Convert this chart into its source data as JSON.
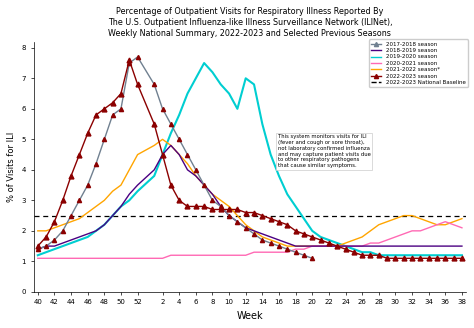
{
  "title": "Percentage of Outpatient Visits for Respiratory Illness Reported By\nThe U.S. Outpatient Influenza-like Illness Surveillance Network (ILINet),\nWeekly National Summary, 2022-2023 and Selected Previous Seasons",
  "xlabel": "Week",
  "ylabel": "% of Visits for ILI",
  "ylim": [
    0,
    8.2
  ],
  "baseline": 2.5,
  "seasons": {
    "2017-2018 season": {
      "color": "#708090",
      "style": "-",
      "marker": "^",
      "markersize": 3,
      "linewidth": 1.0,
      "weeks": [
        40,
        41,
        42,
        43,
        44,
        45,
        46,
        47,
        48,
        49,
        50,
        51,
        52,
        1,
        2,
        3,
        4,
        5,
        6,
        7,
        8,
        9,
        10,
        11,
        12,
        13,
        14,
        15,
        16,
        17,
        18,
        19,
        20
      ],
      "values": [
        1.4,
        1.5,
        1.7,
        2.0,
        2.5,
        3.0,
        3.5,
        4.2,
        5.0,
        5.8,
        6.0,
        7.5,
        7.7,
        6.8,
        6.0,
        5.5,
        5.0,
        4.5,
        4.0,
        3.5,
        3.0,
        2.8,
        2.5,
        2.3,
        2.1,
        1.9,
        1.7,
        1.6,
        1.5,
        1.4,
        1.3,
        1.2,
        1.1
      ]
    },
    "2018-2019 season": {
      "color": "#4B0082",
      "style": "-",
      "marker": null,
      "linewidth": 1.0,
      "weeks": [
        40,
        41,
        42,
        43,
        44,
        45,
        46,
        47,
        48,
        49,
        50,
        51,
        52,
        1,
        2,
        3,
        4,
        5,
        6,
        7,
        8,
        9,
        10,
        11,
        12,
        13,
        14,
        15,
        16,
        17,
        18,
        19,
        20,
        21,
        22,
        23,
        24,
        25,
        26,
        27,
        28,
        29,
        30,
        31,
        32,
        33,
        34,
        35,
        36,
        37,
        38
      ],
      "values": [
        1.4,
        1.5,
        1.5,
        1.6,
        1.7,
        1.8,
        1.9,
        2.0,
        2.2,
        2.5,
        2.8,
        3.2,
        3.5,
        4.0,
        4.5,
        4.8,
        4.5,
        4.0,
        3.8,
        3.5,
        3.2,
        2.8,
        2.5,
        2.3,
        2.1,
        2.0,
        1.9,
        1.8,
        1.7,
        1.6,
        1.5,
        1.5,
        1.5,
        1.5,
        1.5,
        1.5,
        1.5,
        1.5,
        1.5,
        1.5,
        1.5,
        1.5,
        1.5,
        1.5,
        1.5,
        1.5,
        1.5,
        1.5,
        1.5,
        1.5,
        1.5
      ]
    },
    "2019-2020 season": {
      "color": "#00CED1",
      "style": "-",
      "marker": null,
      "linewidth": 1.5,
      "weeks": [
        40,
        41,
        42,
        43,
        44,
        45,
        46,
        47,
        48,
        49,
        50,
        51,
        52,
        1,
        2,
        3,
        4,
        5,
        6,
        7,
        8,
        9,
        10,
        11,
        12,
        13,
        14,
        15,
        16,
        17,
        18,
        19,
        20,
        21,
        22,
        23,
        24,
        25,
        26,
        27,
        28,
        29,
        30,
        31,
        32,
        33,
        34,
        35,
        36,
        37,
        38
      ],
      "values": [
        1.2,
        1.3,
        1.4,
        1.5,
        1.6,
        1.7,
        1.8,
        2.0,
        2.2,
        2.5,
        2.8,
        3.0,
        3.3,
        3.8,
        4.5,
        5.2,
        5.8,
        6.5,
        7.0,
        7.5,
        7.2,
        6.8,
        6.5,
        6.0,
        7.0,
        6.8,
        5.5,
        4.5,
        3.8,
        3.2,
        2.8,
        2.4,
        2.0,
        1.8,
        1.7,
        1.6,
        1.5,
        1.4,
        1.3,
        1.3,
        1.2,
        1.2,
        1.2,
        1.2,
        1.2,
        1.2,
        1.2,
        1.2,
        1.2,
        1.2,
        1.2
      ]
    },
    "2020-2021 season": {
      "color": "#FF69B4",
      "style": "-",
      "marker": null,
      "linewidth": 1.0,
      "weeks": [
        40,
        41,
        42,
        43,
        44,
        45,
        46,
        47,
        48,
        49,
        50,
        51,
        52,
        1,
        2,
        3,
        4,
        5,
        6,
        7,
        8,
        9,
        10,
        11,
        12,
        13,
        14,
        15,
        16,
        17,
        18,
        19,
        20,
        21,
        22,
        23,
        24,
        25,
        26,
        27,
        28,
        29,
        30,
        31,
        32,
        33,
        34,
        35,
        36,
        37,
        38
      ],
      "values": [
        1.1,
        1.1,
        1.1,
        1.1,
        1.1,
        1.1,
        1.1,
        1.1,
        1.1,
        1.1,
        1.1,
        1.1,
        1.1,
        1.1,
        1.1,
        1.2,
        1.2,
        1.2,
        1.2,
        1.2,
        1.2,
        1.2,
        1.2,
        1.2,
        1.2,
        1.3,
        1.3,
        1.3,
        1.3,
        1.3,
        1.4,
        1.4,
        1.5,
        1.5,
        1.5,
        1.5,
        1.5,
        1.5,
        1.5,
        1.6,
        1.6,
        1.7,
        1.8,
        1.9,
        2.0,
        2.0,
        2.1,
        2.2,
        2.3,
        2.2,
        2.1
      ]
    },
    "2021-2022 season*": {
      "color": "#FFA500",
      "style": "-",
      "marker": null,
      "linewidth": 1.0,
      "weeks": [
        40,
        41,
        42,
        43,
        44,
        45,
        46,
        47,
        48,
        49,
        50,
        51,
        52,
        1,
        2,
        3,
        4,
        5,
        6,
        7,
        8,
        9,
        10,
        11,
        12,
        13,
        14,
        15,
        16,
        17,
        18,
        19,
        20,
        21,
        22,
        23,
        24,
        25,
        26,
        27,
        28,
        29,
        30,
        31,
        32,
        33,
        34,
        35,
        36,
        37,
        38
      ],
      "values": [
        2.0,
        2.0,
        2.1,
        2.2,
        2.3,
        2.4,
        2.6,
        2.8,
        3.0,
        3.3,
        3.5,
        4.0,
        4.5,
        4.8,
        5.0,
        4.8,
        4.5,
        4.2,
        3.8,
        3.5,
        3.2,
        3.0,
        2.8,
        2.5,
        2.2,
        2.0,
        1.8,
        1.7,
        1.6,
        1.5,
        1.5,
        1.5,
        1.5,
        1.5,
        1.5,
        1.5,
        1.6,
        1.7,
        1.8,
        2.0,
        2.2,
        2.3,
        2.4,
        2.5,
        2.5,
        2.4,
        2.3,
        2.2,
        2.2,
        2.3,
        2.4
      ]
    },
    "2022-2023 season": {
      "color": "#8B0000",
      "style": "-",
      "marker": "^",
      "markersize": 3.5,
      "linewidth": 1.0,
      "weeks": [
        40,
        41,
        42,
        43,
        44,
        45,
        46,
        47,
        48,
        49,
        50,
        51,
        52,
        1,
        2,
        3,
        4,
        5,
        6,
        7,
        8,
        9,
        10,
        11,
        12,
        13,
        14,
        15,
        16,
        17,
        18,
        19,
        20,
        21,
        22,
        23,
        24,
        25,
        26,
        27,
        28,
        29,
        30,
        31,
        32,
        33,
        34,
        35,
        36,
        37,
        38
      ],
      "values": [
        1.5,
        1.8,
        2.3,
        3.0,
        3.8,
        4.5,
        5.2,
        5.8,
        6.0,
        6.2,
        6.5,
        7.6,
        6.8,
        5.5,
        4.5,
        3.5,
        3.0,
        2.8,
        2.8,
        2.8,
        2.7,
        2.7,
        2.7,
        2.7,
        2.6,
        2.6,
        2.5,
        2.4,
        2.3,
        2.2,
        2.0,
        1.9,
        1.8,
        1.7,
        1.6,
        1.5,
        1.4,
        1.3,
        1.2,
        1.2,
        1.2,
        1.1,
        1.1,
        1.1,
        1.1,
        1.1,
        1.1,
        1.1,
        1.1,
        1.1,
        1.1
      ]
    }
  },
  "legend_items": [
    {
      "label": "2017-2018 season",
      "color": "#708090",
      "style": "-",
      "marker": "^"
    },
    {
      "label": "2018-2019 season",
      "color": "#4B0082",
      "style": "-",
      "marker": null
    },
    {
      "label": "2019-2020 season",
      "color": "#00CED1",
      "style": "-",
      "marker": null
    },
    {
      "label": "2020-2021 season",
      "color": "#FF69B4",
      "style": "-",
      "marker": null
    },
    {
      "label": "2021-2022 season*",
      "color": "#FFA500",
      "style": "-",
      "marker": null
    },
    {
      "label": "2022-2023 season",
      "color": "#8B0000",
      "style": "-",
      "marker": "^"
    },
    {
      "label": "2022-2023 National Baseline",
      "color": "#000000",
      "style": "--",
      "marker": null
    }
  ],
  "annotation": "This system monitors visits for ILI\n(fever and cough or sore throat),\nnot laboratory confirmed influenza\nand may capture patient visits due\nto other respiratory pathogens\nthat cause similar symptoms.",
  "xtick_labels": [
    "40",
    "42",
    "44",
    "46",
    "48",
    "50",
    "52",
    "2",
    "4",
    "6",
    "8",
    "10",
    "12",
    "14",
    "16",
    "18",
    "20",
    "22",
    "24",
    "26",
    "28",
    "30",
    "32",
    "34",
    "36",
    "38"
  ],
  "yticks": [
    0,
    1,
    2,
    3,
    4,
    5,
    6,
    7,
    8
  ],
  "background_color": "#ffffff"
}
